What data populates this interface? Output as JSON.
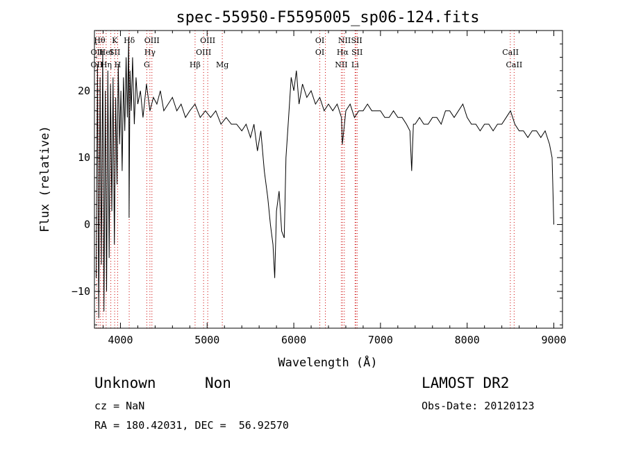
{
  "chart_data": {
    "type": "line",
    "title": "spec-55950-F5595005_sp06-124.fits",
    "xlabel": "Wavelength (Å)",
    "ylabel": "Flux (relative)",
    "xlim": [
      3700,
      9100
    ],
    "ylim": [
      -15.5,
      29
    ],
    "xticks": [
      4000,
      5000,
      6000,
      7000,
      8000,
      9000
    ],
    "yticks": [
      -10,
      0,
      10,
      20
    ],
    "grid": false,
    "line_color": "#000000",
    "marker_color": "#cc0000",
    "series": [
      {
        "x": [
          3720,
          3735,
          3750,
          3765,
          3780,
          3795,
          3810,
          3825,
          3840,
          3855,
          3870,
          3885,
          3900,
          3915,
          3930,
          3945,
          3960,
          3975,
          3990,
          4005,
          4020,
          4035,
          4050,
          4065,
          4080,
          4095,
          4100,
          4110,
          4125,
          4140,
          4160,
          4180,
          4200,
          4230,
          4260,
          4300,
          4340,
          4380,
          4420,
          4460,
          4500,
          4550,
          4600,
          4650,
          4700,
          4750,
          4800,
          4860,
          4920,
          4980,
          5040,
          5100,
          5160,
          5220,
          5280,
          5340,
          5400,
          5450,
          5500,
          5540,
          5580,
          5620,
          5660,
          5700,
          5730,
          5760,
          5780,
          5800,
          5830,
          5860,
          5890,
          5910,
          5940,
          5970,
          6000,
          6030,
          6060,
          6100,
          6150,
          6200,
          6250,
          6300,
          6350,
          6400,
          6450,
          6500,
          6550,
          6560,
          6600,
          6650,
          6700,
          6750,
          6800,
          6850,
          6900,
          6950,
          7000,
          7050,
          7100,
          7150,
          7200,
          7250,
          7300,
          7340,
          7360,
          7380,
          7400,
          7450,
          7500,
          7550,
          7600,
          7650,
          7700,
          7750,
          7800,
          7850,
          7900,
          7950,
          8000,
          8050,
          8100,
          8150,
          8200,
          8250,
          8300,
          8350,
          8400,
          8450,
          8500,
          8550,
          8600,
          8650,
          8700,
          8750,
          8800,
          8850,
          8900,
          8950,
          8980,
          9000
        ],
        "values": [
          -8,
          24,
          -14,
          22,
          -6,
          26,
          -13,
          20,
          -10,
          23,
          -5,
          21,
          2,
          22,
          -3,
          19,
          6,
          24,
          12,
          20,
          8,
          22,
          14,
          25,
          16,
          28,
          1,
          23,
          17,
          25,
          15,
          22,
          18,
          20,
          16,
          21,
          17,
          19,
          18,
          20,
          17,
          18,
          19,
          17,
          18,
          16,
          17,
          18,
          16,
          17,
          16,
          17,
          15,
          16,
          15,
          15,
          14,
          15,
          13,
          15,
          11,
          14,
          8,
          4,
          0,
          -3,
          -8,
          2,
          5,
          -1,
          -2,
          10,
          16,
          22,
          20,
          23,
          18,
          21,
          19,
          20,
          18,
          19,
          17,
          18,
          17,
          18,
          16,
          12,
          17,
          18,
          16,
          17,
          17,
          18,
          17,
          17,
          17,
          16,
          16,
          17,
          16,
          16,
          15,
          14,
          8,
          15,
          15,
          16,
          15,
          15,
          16,
          16,
          15,
          17,
          17,
          16,
          17,
          18,
          16,
          15,
          15,
          14,
          15,
          15,
          14,
          15,
          15,
          16,
          17,
          15,
          14,
          14,
          13,
          14,
          14,
          13,
          14,
          12,
          10,
          0
        ]
      }
    ],
    "lines": [
      {
        "x": 3727,
        "labels": [
          "OII",
          "OII"
        ]
      },
      {
        "x": 3750,
        "labels": [],
        "extra": "Hθ"
      },
      {
        "x": 3770,
        "labels": []
      },
      {
        "x": 3798,
        "labels": [
          "Hθ"
        ]
      },
      {
        "x": 3835,
        "labels": [
          "HeI",
          "Hη"
        ]
      },
      {
        "x": 3889,
        "labels": []
      },
      {
        "x": 3933,
        "labels": [
          "K",
          "SII"
        ]
      },
      {
        "x": 3968,
        "labels": [
          "H"
        ]
      },
      {
        "x": 4101,
        "labels": [
          "Hδ"
        ]
      },
      {
        "x": 4304,
        "labels": [
          "G"
        ]
      },
      {
        "x": 4340,
        "labels": [
          "Hγ"
        ]
      },
      {
        "x": 4363,
        "labels": [
          "OIII"
        ]
      },
      {
        "x": 4861,
        "labels": [
          "Hβ"
        ]
      },
      {
        "x": 4959,
        "labels": [
          "OIII"
        ]
      },
      {
        "x": 5007,
        "labels": [
          "OIII"
        ]
      },
      {
        "x": 5175,
        "labels": [
          "Mg"
        ]
      },
      {
        "x": 6300,
        "labels": [
          "OI"
        ]
      },
      {
        "x": 6364,
        "labels": [
          "OI"
        ]
      },
      {
        "x": 6548,
        "labels": [
          "NII"
        ]
      },
      {
        "x": 6563,
        "labels": [
          "Hα"
        ]
      },
      {
        "x": 6583,
        "labels": [
          "NII"
        ]
      },
      {
        "x": 6707,
        "labels": [
          "Li"
        ]
      },
      {
        "x": 6716,
        "labels": [
          "SII"
        ]
      },
      {
        "x": 6731,
        "labels": [
          "SII"
        ]
      },
      {
        "x": 8498,
        "labels": [
          "CaII"
        ]
      },
      {
        "x": 8542,
        "labels": [
          "CaII"
        ]
      }
    ],
    "line_labels": [
      {
        "text": "Hθ",
        "x": 3760,
        "row": 1
      },
      {
        "text": "K",
        "x": 3934,
        "row": 1
      },
      {
        "text": "Hδ",
        "x": 4102,
        "row": 1
      },
      {
        "text": "OIII",
        "x": 4363,
        "row": 1
      },
      {
        "text": "OIII",
        "x": 5007,
        "row": 1
      },
      {
        "text": "OI",
        "x": 6300,
        "row": 1
      },
      {
        "text": "NII",
        "x": 6585,
        "row": 1
      },
      {
        "text": "SII",
        "x": 6725,
        "row": 1
      },
      {
        "text": "OII",
        "x": 3727,
        "row": 2
      },
      {
        "text": "HeI",
        "x": 3835,
        "row": 2
      },
      {
        "text": "SII",
        "x": 3934,
        "row": 2
      },
      {
        "text": "Hγ",
        "x": 4340,
        "row": 2
      },
      {
        "text": "OIII",
        "x": 4959,
        "row": 2
      },
      {
        "text": "OI",
        "x": 6300,
        "row": 2
      },
      {
        "text": "Hα",
        "x": 6563,
        "row": 2
      },
      {
        "text": "SII",
        "x": 6730,
        "row": 2
      },
      {
        "text": "CaII",
        "x": 8500,
        "row": 2
      },
      {
        "text": "OII",
        "x": 3727,
        "row": 3
      },
      {
        "text": "Hη",
        "x": 3835,
        "row": 3
      },
      {
        "text": "H",
        "x": 3968,
        "row": 3
      },
      {
        "text": "G",
        "x": 4304,
        "row": 3
      },
      {
        "text": "Hβ",
        "x": 4861,
        "row": 3
      },
      {
        "text": "Mg",
        "x": 5175,
        "row": 3
      },
      {
        "text": "NII",
        "x": 6548,
        "row": 3
      },
      {
        "text": "Li",
        "x": 6707,
        "row": 3
      },
      {
        "text": "CaII",
        "x": 8542,
        "row": 3
      }
    ]
  },
  "info": {
    "class": "Unknown",
    "subclass": "Non",
    "survey": "LAMOST DR2",
    "cz": "cz = NaN",
    "obs_date": "Obs-Date: 20120123",
    "coords": "RA = 180.42031, DEC =  56.92570"
  }
}
